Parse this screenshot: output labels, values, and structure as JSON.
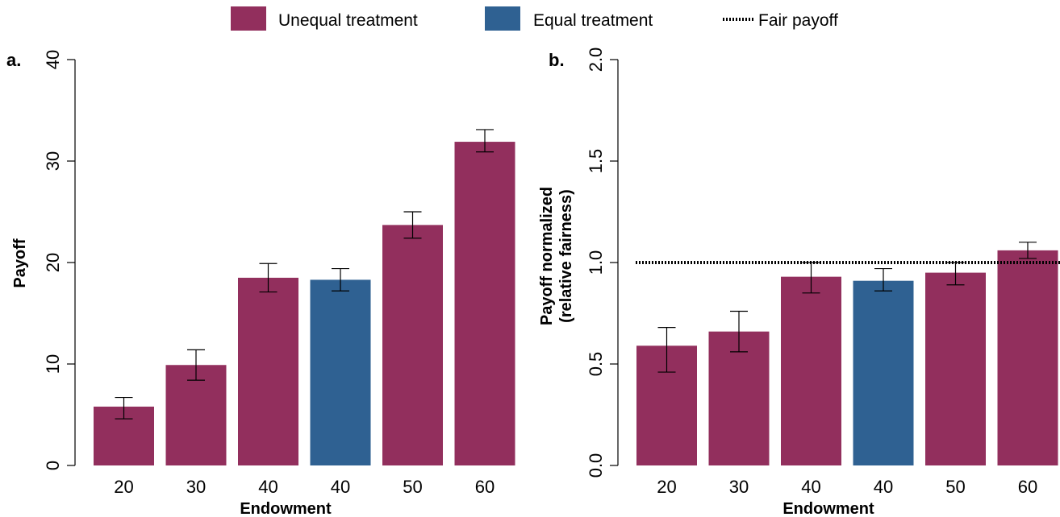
{
  "legend": {
    "unequal_label": "Unequal treatment",
    "equal_label": "Equal treatment",
    "fair_label": "Fair payoff"
  },
  "colors": {
    "unequal": "#922f5d",
    "equal": "#2f6192"
  },
  "chart_data": [
    {
      "type": "bar",
      "panel_label": "a.",
      "xlabel": "Endowment",
      "ylabel": "Payoff",
      "ylim": [
        0,
        40
      ],
      "yticks": [
        "0",
        "10",
        "20",
        "30",
        "40"
      ],
      "categories": [
        "20",
        "30",
        "40",
        "40",
        "50",
        "60"
      ],
      "groups": [
        "unequal",
        "unequal",
        "unequal",
        "equal",
        "unequal",
        "unequal"
      ],
      "values": [
        5.8,
        9.9,
        18.5,
        18.3,
        23.7,
        31.9
      ],
      "error_low": [
        4.6,
        8.4,
        17.1,
        17.2,
        22.4,
        30.9
      ],
      "error_high": [
        6.7,
        11.4,
        19.9,
        19.4,
        25.0,
        33.1
      ]
    },
    {
      "type": "bar",
      "panel_label": "b.",
      "xlabel": "Endowment",
      "ylabel": "Payoff normalized",
      "ylabel2": "(relative fairness)",
      "ylim": [
        0,
        2
      ],
      "yticks": [
        "0.0",
        "0.5",
        "1.0",
        "1.5",
        "2.0"
      ],
      "categories": [
        "20",
        "30",
        "40",
        "40",
        "50",
        "60"
      ],
      "groups": [
        "unequal",
        "unequal",
        "unequal",
        "equal",
        "unequal",
        "unequal"
      ],
      "values": [
        0.59,
        0.66,
        0.93,
        0.91,
        0.95,
        1.06
      ],
      "error_low": [
        0.46,
        0.56,
        0.85,
        0.86,
        0.89,
        1.02
      ],
      "error_high": [
        0.68,
        0.76,
        1.0,
        0.97,
        1.0,
        1.1
      ],
      "reference_line": 1.0
    }
  ]
}
